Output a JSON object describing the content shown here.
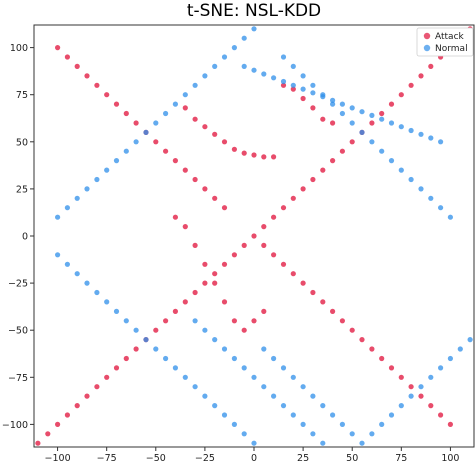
{
  "chart_data": {
    "type": "scatter",
    "title": "t-SNE: NSL-KDD",
    "xlabel": "",
    "ylabel": "",
    "xlim": [
      -112,
      112
    ],
    "ylim": [
      -112,
      112
    ],
    "xticks": [
      -100,
      -75,
      -50,
      -25,
      0,
      25,
      50,
      75,
      100
    ],
    "yticks": [
      -100,
      -75,
      -50,
      -25,
      0,
      25,
      50,
      75,
      100
    ],
    "grid": false,
    "legend": {
      "placement": "top-right"
    },
    "series": [
      {
        "name": "Attack",
        "color": "#e0103a",
        "points": [
          [
            -35,
            68
          ],
          [
            -30,
            62
          ],
          [
            -25,
            58
          ],
          [
            -20,
            54
          ],
          [
            -15,
            50
          ],
          [
            -10,
            46
          ],
          [
            -5,
            44
          ],
          [
            0,
            43
          ],
          [
            5,
            42
          ],
          [
            10,
            42
          ],
          [
            -20,
            -25
          ],
          [
            -15,
            -35
          ],
          [
            -10,
            -45
          ],
          [
            -5,
            -50
          ],
          [
            0,
            -45
          ],
          [
            5,
            -40
          ],
          [
            -25,
            -15
          ],
          [
            -30,
            -5
          ],
          [
            -35,
            5
          ],
          [
            -40,
            10
          ],
          [
            15,
            80
          ],
          [
            20,
            78
          ],
          [
            25,
            73
          ],
          [
            30,
            68
          ],
          [
            35,
            62
          ],
          [
            40,
            60
          ],
          [
            -10,
            -10
          ],
          [
            -5,
            -5
          ],
          [
            0,
            0
          ],
          [
            5,
            5
          ],
          [
            10,
            10
          ],
          [
            -15,
            -15
          ],
          [
            -20,
            -20
          ],
          [
            -25,
            -25
          ],
          [
            -30,
            -30
          ],
          [
            -35,
            -35
          ],
          [
            -40,
            -40
          ],
          [
            -45,
            -45
          ],
          [
            -50,
            -50
          ],
          [
            -55,
            -55
          ],
          [
            -60,
            -60
          ],
          [
            -65,
            -65
          ],
          [
            -70,
            -70
          ],
          [
            -75,
            -75
          ],
          [
            -80,
            -80
          ],
          [
            -85,
            -85
          ],
          [
            -90,
            -90
          ],
          [
            -95,
            -95
          ],
          [
            -100,
            -100
          ],
          [
            -105,
            -105
          ],
          [
            -110,
            -110
          ],
          [
            110,
            110
          ],
          [
            105,
            105
          ],
          [
            100,
            100
          ],
          [
            95,
            95
          ],
          [
            90,
            90
          ],
          [
            85,
            85
          ],
          [
            80,
            80
          ],
          [
            75,
            75
          ],
          [
            70,
            70
          ],
          [
            65,
            65
          ],
          [
            60,
            60
          ],
          [
            55,
            55
          ],
          [
            50,
            50
          ],
          [
            45,
            45
          ],
          [
            40,
            40
          ],
          [
            35,
            35
          ],
          [
            30,
            30
          ],
          [
            25,
            25
          ],
          [
            20,
            20
          ],
          [
            15,
            15
          ],
          [
            -100,
            100
          ],
          [
            -95,
            95
          ],
          [
            -90,
            90
          ],
          [
            -85,
            85
          ],
          [
            -80,
            80
          ],
          [
            -75,
            75
          ],
          [
            -70,
            70
          ],
          [
            -65,
            65
          ],
          [
            -60,
            60
          ],
          [
            -55,
            55
          ],
          [
            -50,
            50
          ],
          [
            -45,
            45
          ],
          [
            -40,
            40
          ],
          [
            -35,
            35
          ],
          [
            -30,
            30
          ],
          [
            -25,
            25
          ],
          [
            -20,
            20
          ],
          [
            -15,
            15
          ],
          [
            100,
            -100
          ],
          [
            95,
            -95
          ],
          [
            90,
            -90
          ],
          [
            85,
            -85
          ],
          [
            80,
            -80
          ],
          [
            75,
            -75
          ],
          [
            70,
            -70
          ],
          [
            65,
            -65
          ],
          [
            60,
            -60
          ],
          [
            55,
            -55
          ],
          [
            50,
            -50
          ],
          [
            45,
            -45
          ],
          [
            40,
            -40
          ],
          [
            35,
            -35
          ],
          [
            30,
            -30
          ],
          [
            25,
            -25
          ],
          [
            20,
            -20
          ],
          [
            15,
            -15
          ],
          [
            10,
            -10
          ],
          [
            5,
            -5
          ]
        ]
      },
      {
        "name": "Normal",
        "color": "#2f8fea",
        "points": [
          [
            -5,
            90
          ],
          [
            0,
            88
          ],
          [
            5,
            86
          ],
          [
            10,
            84
          ],
          [
            15,
            82
          ],
          [
            20,
            80
          ],
          [
            25,
            78
          ],
          [
            30,
            76
          ],
          [
            35,
            74
          ],
          [
            40,
            72
          ],
          [
            45,
            70
          ],
          [
            50,
            68
          ],
          [
            55,
            66
          ],
          [
            60,
            64
          ],
          [
            65,
            62
          ],
          [
            70,
            60
          ],
          [
            75,
            58
          ],
          [
            80,
            56
          ],
          [
            85,
            54
          ],
          [
            90,
            52
          ],
          [
            95,
            50
          ],
          [
            -30,
            -45
          ],
          [
            -25,
            -50
          ],
          [
            -20,
            -55
          ],
          [
            -15,
            -60
          ],
          [
            -10,
            -65
          ],
          [
            -5,
            -70
          ],
          [
            0,
            -75
          ],
          [
            5,
            -80
          ],
          [
            10,
            -85
          ],
          [
            15,
            -90
          ],
          [
            20,
            -95
          ],
          [
            25,
            -100
          ],
          [
            30,
            -105
          ],
          [
            35,
            -110
          ],
          [
            -100,
            10
          ],
          [
            -95,
            15
          ],
          [
            -90,
            20
          ],
          [
            -85,
            25
          ],
          [
            -80,
            30
          ],
          [
            -75,
            35
          ],
          [
            -70,
            40
          ],
          [
            -65,
            45
          ],
          [
            -60,
            50
          ],
          [
            -55,
            55
          ],
          [
            -50,
            60
          ],
          [
            -45,
            65
          ],
          [
            -40,
            70
          ],
          [
            -35,
            75
          ],
          [
            -30,
            80
          ],
          [
            -25,
            85
          ],
          [
            -20,
            90
          ],
          [
            -15,
            95
          ],
          [
            -10,
            100
          ],
          [
            -5,
            105
          ],
          [
            0,
            110
          ],
          [
            5,
            -60
          ],
          [
            10,
            -65
          ],
          [
            15,
            -70
          ],
          [
            20,
            -75
          ],
          [
            25,
            -80
          ],
          [
            30,
            -85
          ],
          [
            35,
            -90
          ],
          [
            40,
            -95
          ],
          [
            45,
            -100
          ],
          [
            50,
            -105
          ],
          [
            55,
            -110
          ],
          [
            60,
            -105
          ],
          [
            65,
            -100
          ],
          [
            70,
            -95
          ],
          [
            75,
            -90
          ],
          [
            80,
            -85
          ],
          [
            85,
            -80
          ],
          [
            90,
            -75
          ],
          [
            95,
            -70
          ],
          [
            100,
            -65
          ],
          [
            105,
            -60
          ],
          [
            110,
            -55
          ],
          [
            -100,
            -10
          ],
          [
            -95,
            -15
          ],
          [
            -90,
            -20
          ],
          [
            -85,
            -25
          ],
          [
            -80,
            -30
          ],
          [
            -75,
            -35
          ],
          [
            -70,
            -40
          ],
          [
            -65,
            -45
          ],
          [
            -60,
            -50
          ],
          [
            -55,
            -55
          ],
          [
            -50,
            -60
          ],
          [
            -45,
            -65
          ],
          [
            -40,
            -70
          ],
          [
            -35,
            -75
          ],
          [
            -30,
            -80
          ],
          [
            -25,
            -85
          ],
          [
            -20,
            -90
          ],
          [
            -15,
            -95
          ],
          [
            -10,
            -100
          ],
          [
            -5,
            -105
          ],
          [
            0,
            -110
          ],
          [
            100,
            10
          ],
          [
            95,
            15
          ],
          [
            90,
            20
          ],
          [
            85,
            25
          ],
          [
            80,
            30
          ],
          [
            75,
            35
          ],
          [
            70,
            40
          ],
          [
            65,
            45
          ],
          [
            60,
            50
          ],
          [
            55,
            55
          ],
          [
            50,
            60
          ],
          [
            45,
            65
          ],
          [
            40,
            70
          ],
          [
            35,
            75
          ],
          [
            30,
            80
          ],
          [
            25,
            85
          ],
          [
            20,
            90
          ],
          [
            15,
            95
          ]
        ]
      }
    ]
  }
}
